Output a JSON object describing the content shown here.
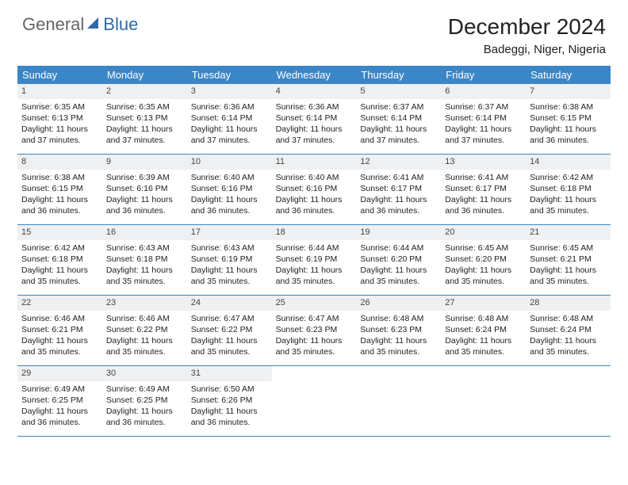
{
  "brand": {
    "part1": "General",
    "part2": "Blue",
    "sail_color": "#2f6aa8",
    "part1_color": "#6a6a6a",
    "part2_color": "#2f6aa8"
  },
  "title": "December 2024",
  "location": "Badeggi, Niger, Nigeria",
  "header_bg": "#3b86c6",
  "daynum_bg": "#eef0f2",
  "border_color": "#3b86c6",
  "text_color": "#222222",
  "fonts": {
    "title_size": 28,
    "location_size": 15,
    "header_size": 13,
    "cell_size": 10.5
  },
  "day_names": [
    "Sunday",
    "Monday",
    "Tuesday",
    "Wednesday",
    "Thursday",
    "Friday",
    "Saturday"
  ],
  "weeks": [
    [
      {
        "n": "1",
        "sr": "Sunrise: 6:35 AM",
        "ss": "Sunset: 6:13 PM",
        "dl": "Daylight: 11 hours and 37 minutes."
      },
      {
        "n": "2",
        "sr": "Sunrise: 6:35 AM",
        "ss": "Sunset: 6:13 PM",
        "dl": "Daylight: 11 hours and 37 minutes."
      },
      {
        "n": "3",
        "sr": "Sunrise: 6:36 AM",
        "ss": "Sunset: 6:14 PM",
        "dl": "Daylight: 11 hours and 37 minutes."
      },
      {
        "n": "4",
        "sr": "Sunrise: 6:36 AM",
        "ss": "Sunset: 6:14 PM",
        "dl": "Daylight: 11 hours and 37 minutes."
      },
      {
        "n": "5",
        "sr": "Sunrise: 6:37 AM",
        "ss": "Sunset: 6:14 PM",
        "dl": "Daylight: 11 hours and 37 minutes."
      },
      {
        "n": "6",
        "sr": "Sunrise: 6:37 AM",
        "ss": "Sunset: 6:14 PM",
        "dl": "Daylight: 11 hours and 37 minutes."
      },
      {
        "n": "7",
        "sr": "Sunrise: 6:38 AM",
        "ss": "Sunset: 6:15 PM",
        "dl": "Daylight: 11 hours and 36 minutes."
      }
    ],
    [
      {
        "n": "8",
        "sr": "Sunrise: 6:38 AM",
        "ss": "Sunset: 6:15 PM",
        "dl": "Daylight: 11 hours and 36 minutes."
      },
      {
        "n": "9",
        "sr": "Sunrise: 6:39 AM",
        "ss": "Sunset: 6:16 PM",
        "dl": "Daylight: 11 hours and 36 minutes."
      },
      {
        "n": "10",
        "sr": "Sunrise: 6:40 AM",
        "ss": "Sunset: 6:16 PM",
        "dl": "Daylight: 11 hours and 36 minutes."
      },
      {
        "n": "11",
        "sr": "Sunrise: 6:40 AM",
        "ss": "Sunset: 6:16 PM",
        "dl": "Daylight: 11 hours and 36 minutes."
      },
      {
        "n": "12",
        "sr": "Sunrise: 6:41 AM",
        "ss": "Sunset: 6:17 PM",
        "dl": "Daylight: 11 hours and 36 minutes."
      },
      {
        "n": "13",
        "sr": "Sunrise: 6:41 AM",
        "ss": "Sunset: 6:17 PM",
        "dl": "Daylight: 11 hours and 36 minutes."
      },
      {
        "n": "14",
        "sr": "Sunrise: 6:42 AM",
        "ss": "Sunset: 6:18 PM",
        "dl": "Daylight: 11 hours and 35 minutes."
      }
    ],
    [
      {
        "n": "15",
        "sr": "Sunrise: 6:42 AM",
        "ss": "Sunset: 6:18 PM",
        "dl": "Daylight: 11 hours and 35 minutes."
      },
      {
        "n": "16",
        "sr": "Sunrise: 6:43 AM",
        "ss": "Sunset: 6:18 PM",
        "dl": "Daylight: 11 hours and 35 minutes."
      },
      {
        "n": "17",
        "sr": "Sunrise: 6:43 AM",
        "ss": "Sunset: 6:19 PM",
        "dl": "Daylight: 11 hours and 35 minutes."
      },
      {
        "n": "18",
        "sr": "Sunrise: 6:44 AM",
        "ss": "Sunset: 6:19 PM",
        "dl": "Daylight: 11 hours and 35 minutes."
      },
      {
        "n": "19",
        "sr": "Sunrise: 6:44 AM",
        "ss": "Sunset: 6:20 PM",
        "dl": "Daylight: 11 hours and 35 minutes."
      },
      {
        "n": "20",
        "sr": "Sunrise: 6:45 AM",
        "ss": "Sunset: 6:20 PM",
        "dl": "Daylight: 11 hours and 35 minutes."
      },
      {
        "n": "21",
        "sr": "Sunrise: 6:45 AM",
        "ss": "Sunset: 6:21 PM",
        "dl": "Daylight: 11 hours and 35 minutes."
      }
    ],
    [
      {
        "n": "22",
        "sr": "Sunrise: 6:46 AM",
        "ss": "Sunset: 6:21 PM",
        "dl": "Daylight: 11 hours and 35 minutes."
      },
      {
        "n": "23",
        "sr": "Sunrise: 6:46 AM",
        "ss": "Sunset: 6:22 PM",
        "dl": "Daylight: 11 hours and 35 minutes."
      },
      {
        "n": "24",
        "sr": "Sunrise: 6:47 AM",
        "ss": "Sunset: 6:22 PM",
        "dl": "Daylight: 11 hours and 35 minutes."
      },
      {
        "n": "25",
        "sr": "Sunrise: 6:47 AM",
        "ss": "Sunset: 6:23 PM",
        "dl": "Daylight: 11 hours and 35 minutes."
      },
      {
        "n": "26",
        "sr": "Sunrise: 6:48 AM",
        "ss": "Sunset: 6:23 PM",
        "dl": "Daylight: 11 hours and 35 minutes."
      },
      {
        "n": "27",
        "sr": "Sunrise: 6:48 AM",
        "ss": "Sunset: 6:24 PM",
        "dl": "Daylight: 11 hours and 35 minutes."
      },
      {
        "n": "28",
        "sr": "Sunrise: 6:48 AM",
        "ss": "Sunset: 6:24 PM",
        "dl": "Daylight: 11 hours and 35 minutes."
      }
    ],
    [
      {
        "n": "29",
        "sr": "Sunrise: 6:49 AM",
        "ss": "Sunset: 6:25 PM",
        "dl": "Daylight: 11 hours and 36 minutes."
      },
      {
        "n": "30",
        "sr": "Sunrise: 6:49 AM",
        "ss": "Sunset: 6:25 PM",
        "dl": "Daylight: 11 hours and 36 minutes."
      },
      {
        "n": "31",
        "sr": "Sunrise: 6:50 AM",
        "ss": "Sunset: 6:26 PM",
        "dl": "Daylight: 11 hours and 36 minutes."
      },
      null,
      null,
      null,
      null
    ]
  ]
}
